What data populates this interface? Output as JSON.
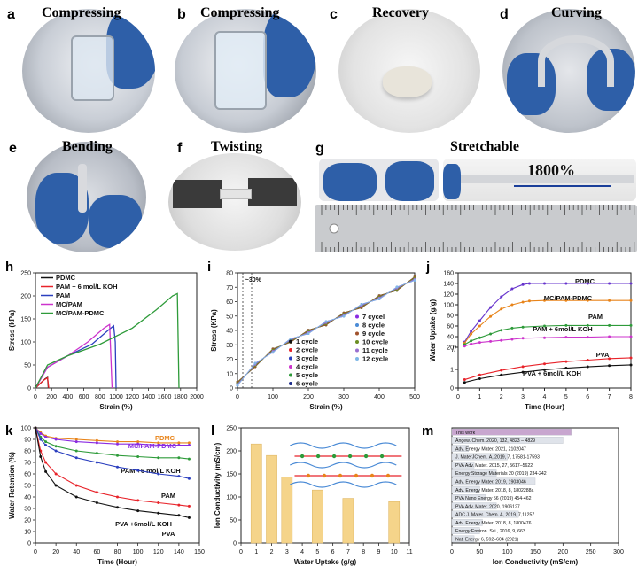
{
  "photos": [
    {
      "id": "a",
      "letter": "a",
      "title": "Compressing"
    },
    {
      "id": "b",
      "letter": "b",
      "title": "Compressing"
    },
    {
      "id": "c",
      "letter": "c",
      "title": "Recovery"
    },
    {
      "id": "d",
      "letter": "d",
      "title": "Curving"
    },
    {
      "id": "e",
      "letter": "e",
      "title": "Bending"
    },
    {
      "id": "f",
      "letter": "f",
      "title": "Twisting"
    },
    {
      "id": "g",
      "letter": "g",
      "title": "Stretchable",
      "annotation": "1800%"
    }
  ],
  "chart_data": [
    {
      "id": "h",
      "letter": "h",
      "type": "line",
      "xlabel": "Strain (%)",
      "ylabel": "Stress (kPa)",
      "xlim": [
        0,
        2000
      ],
      "ylim": [
        0,
        250
      ],
      "xticks": [
        0,
        200,
        400,
        600,
        800,
        1000,
        1200,
        1400,
        1600,
        1800,
        2000
      ],
      "yticks": [
        0,
        50,
        100,
        150,
        200,
        250
      ],
      "series": [
        {
          "name": "PDMC",
          "color": "#111111",
          "x": [
            0,
            60,
            120,
            150,
            160
          ],
          "y": [
            0,
            10,
            20,
            23,
            0
          ]
        },
        {
          "name": "PAM + 6 mol/L KOH",
          "color": "#e8232a",
          "x": [
            0,
            60,
            110,
            150,
            165
          ],
          "y": [
            0,
            10,
            18,
            22,
            0
          ]
        },
        {
          "name": "PAM",
          "color": "#2b3fbf",
          "x": [
            0,
            150,
            400,
            700,
            900,
            970,
            990,
            1000
          ],
          "y": [
            0,
            45,
            70,
            95,
            125,
            135,
            100,
            0
          ]
        },
        {
          "name": "MC/PAM",
          "color": "#cc33cc",
          "x": [
            0,
            150,
            400,
            650,
            850,
            920,
            950
          ],
          "y": [
            0,
            45,
            70,
            100,
            130,
            138,
            0
          ]
        },
        {
          "name": "MC/PAM-PDMC",
          "color": "#2e9b3a",
          "x": [
            0,
            150,
            400,
            800,
            1200,
            1500,
            1700,
            1760,
            1780
          ],
          "y": [
            0,
            50,
            70,
            95,
            130,
            170,
            200,
            205,
            0
          ]
        }
      ]
    },
    {
      "id": "i",
      "letter": "i",
      "type": "scatter",
      "xlabel": "Strain (%)",
      "ylabel": "Stress (KPa)",
      "xlim": [
        0,
        500
      ],
      "ylim": [
        0,
        80
      ],
      "xticks": [
        0,
        100,
        200,
        300,
        400,
        500
      ],
      "yticks": [
        0,
        10,
        20,
        30,
        40,
        50,
        60,
        70,
        80
      ],
      "annotation": "~30%",
      "series": [
        {
          "name": "1 cycle",
          "color": "#111111"
        },
        {
          "name": "2 cycle",
          "color": "#e8232a"
        },
        {
          "name": "3 cycle",
          "color": "#2b3fbf"
        },
        {
          "name": "4 cycle",
          "color": "#cc33cc"
        },
        {
          "name": "5 cycle",
          "color": "#2e9b3a"
        },
        {
          "name": "6 cycle",
          "color": "#1b2a8a"
        },
        {
          "name": "7 cycel",
          "color": "#8a2be2"
        },
        {
          "name": "8 cycle",
          "color": "#4b8bd6"
        },
        {
          "name": "9 cycle",
          "color": "#a0522d"
        },
        {
          "name": "10 cycle",
          "color": "#6b8e23"
        },
        {
          "name": "11 cycle",
          "color": "#9a6fd0"
        },
        {
          "name": "12 cycle",
          "color": "#7fb8e6"
        }
      ],
      "x": [
        0,
        50,
        100,
        150,
        200,
        250,
        300,
        350,
        400,
        450,
        500
      ],
      "y": [
        3,
        16,
        26,
        33,
        39,
        45,
        51,
        57,
        63,
        69,
        76
      ]
    },
    {
      "id": "j",
      "letter": "j",
      "type": "line",
      "xlabel": "Time (Hour)",
      "ylabel": "Water Uptake (g/g)",
      "xlim": [
        0,
        8
      ],
      "xticks": [
        0,
        1,
        2,
        3,
        4,
        5,
        6,
        7,
        8
      ],
      "upper_yticks": [
        20,
        40,
        60,
        80,
        100,
        120,
        140,
        160
      ],
      "lower_yticks": [
        0,
        1
      ],
      "series": [
        {
          "name": "PDMC",
          "color": "#6633cc",
          "x": [
            0.3,
            0.6,
            1,
            1.5,
            2,
            2.5,
            3,
            3.3,
            4,
            5,
            6,
            7,
            8
          ],
          "y": [
            30,
            50,
            70,
            95,
            115,
            130,
            138,
            140,
            140,
            140,
            140,
            140,
            140
          ]
        },
        {
          "name": "MC/PAM-PDMC",
          "color": "#e8841a",
          "x": [
            0.3,
            0.6,
            1,
            1.5,
            2,
            2.5,
            3,
            3.3,
            4,
            5,
            6,
            7,
            8
          ],
          "y": [
            28,
            45,
            60,
            78,
            92,
            100,
            105,
            107,
            108,
            108,
            108,
            108,
            108
          ]
        },
        {
          "name": "PAM",
          "color": "#2e9b3a",
          "x": [
            0.3,
            0.6,
            1,
            1.5,
            2,
            2.5,
            3,
            4,
            5,
            6,
            7,
            8
          ],
          "y": [
            25,
            32,
            38,
            45,
            52,
            56,
            58,
            60,
            61,
            61,
            61,
            61
          ]
        },
        {
          "name": "PAM + 6mol/L KOH",
          "color": "#cc33cc",
          "x": [
            0.3,
            0.6,
            1,
            1.5,
            2,
            2.5,
            3,
            4,
            5,
            6,
            7,
            8
          ],
          "y": [
            22,
            26,
            29,
            31,
            33,
            35,
            37,
            38,
            39,
            39,
            40,
            40
          ]
        },
        {
          "name": "PVA",
          "color": "#e8232a",
          "x": [
            0.3,
            1,
            2,
            3,
            4,
            5,
            6,
            7,
            8
          ],
          "y": [
            0.45,
            0.7,
            0.95,
            1.15,
            1.3,
            1.42,
            1.5,
            1.58,
            1.62
          ]
        },
        {
          "name": "PVA + 6mol/L KOH",
          "color": "#111111",
          "x": [
            0.3,
            1,
            2,
            3,
            4,
            5,
            6,
            7,
            8
          ],
          "y": [
            0.3,
            0.5,
            0.7,
            0.85,
            0.98,
            1.07,
            1.14,
            1.2,
            1.24
          ]
        }
      ]
    },
    {
      "id": "k",
      "letter": "k",
      "type": "line",
      "xlabel": "Time (Hour)",
      "ylabel": "Water Retention (%)",
      "xlim": [
        0,
        160
      ],
      "ylim": [
        0,
        100
      ],
      "xticks": [
        0,
        20,
        40,
        60,
        80,
        100,
        120,
        140,
        160
      ],
      "yticks": [
        0,
        10,
        20,
        30,
        40,
        50,
        60,
        70,
        80,
        90,
        100
      ],
      "series": [
        {
          "name": "PDMC",
          "color": "#e8841a",
          "x": [
            0,
            5,
            10,
            20,
            40,
            60,
            80,
            100,
            120,
            140,
            150
          ],
          "y": [
            100,
            96,
            93,
            91,
            90,
            89,
            88,
            88,
            87,
            87,
            87
          ]
        },
        {
          "name": "MC/PAM-PDMC",
          "color": "#8a2be2",
          "x": [
            0,
            5,
            10,
            20,
            40,
            60,
            80,
            100,
            120,
            140,
            150
          ],
          "y": [
            100,
            95,
            92,
            90,
            88,
            87,
            86,
            86,
            85,
            85,
            85
          ]
        },
        {
          "name": "PAM +6 mol/L KOH",
          "color": "#2e9b3a",
          "x": [
            0,
            5,
            10,
            20,
            40,
            60,
            80,
            100,
            120,
            140,
            150
          ],
          "y": [
            100,
            92,
            88,
            84,
            80,
            78,
            76,
            75,
            74,
            74,
            73
          ]
        },
        {
          "name": "PAM",
          "color": "#2b3fbf",
          "x": [
            0,
            5,
            10,
            20,
            40,
            60,
            80,
            100,
            120,
            140,
            150
          ],
          "y": [
            100,
            90,
            85,
            80,
            74,
            70,
            66,
            63,
            60,
            58,
            56
          ]
        },
        {
          "name": "PVA +6mol/L KOH",
          "color": "#e8232a",
          "x": [
            0,
            5,
            10,
            20,
            40,
            60,
            80,
            100,
            120,
            140,
            150
          ],
          "y": [
            100,
            80,
            70,
            60,
            50,
            44,
            40,
            37,
            35,
            33,
            32
          ]
        },
        {
          "name": "PVA",
          "color": "#111111",
          "x": [
            0,
            5,
            10,
            20,
            40,
            60,
            80,
            100,
            120,
            140,
            150
          ],
          "y": [
            100,
            75,
            62,
            50,
            40,
            35,
            31,
            28,
            26,
            24,
            22
          ]
        }
      ]
    },
    {
      "id": "l",
      "letter": "l",
      "type": "bar",
      "xlabel": "Water Uptake (g/g)",
      "ylabel": "Ion Conductivity (mS/cm)",
      "xlim": [
        0,
        11
      ],
      "ylim": [
        0,
        250
      ],
      "xticks": [
        0,
        1,
        2,
        3,
        4,
        5,
        6,
        7,
        8,
        9,
        10,
        11
      ],
      "yticks": [
        0,
        50,
        100,
        150,
        200,
        250
      ],
      "x": [
        1,
        2,
        3,
        5,
        7,
        10
      ],
      "values": [
        215,
        190,
        143,
        115,
        97,
        90
      ],
      "color": "#f5d48a"
    },
    {
      "id": "m",
      "letter": "m",
      "type": "bar",
      "xlabel": "Ion Conductivity (mS/cm)",
      "xlim": [
        0,
        300
      ],
      "xticks": [
        0,
        50,
        100,
        150,
        200,
        250,
        300
      ],
      "bars": [
        {
          "label": "This work",
          "value": 215,
          "color": "#c8a6cf"
        },
        {
          "label": "Angew. Chem. 2020, 132, 4823 – 4829",
          "value": 200,
          "color": "#dfe3ea"
        },
        {
          "label": "Adv. Energy Mater. 2021, 2102047",
          "value": 30,
          "color": "#dfe3ea"
        },
        {
          "label": "J. MaterJChem. A, 2019, 7, 17581-17593",
          "value": 100,
          "color": "#dfe3ea"
        },
        {
          "label": "PVA Adv. Mater. 2015, 27, 5617–5622",
          "value": 40,
          "color": "#dfe3ea"
        },
        {
          "label": "Energy Storage Materials 20 (2019) 234-242",
          "value": 80,
          "color": "#dfe3ea"
        },
        {
          "label": "Adv. Energy Mater. 2019, 1903046",
          "value": 150,
          "color": "#dfe3ea"
        },
        {
          "label": "Adv. Energy Mater. 2018, 8, 1802288a",
          "value": 50,
          "color": "#dfe3ea"
        },
        {
          "label": "PVA Nano Energy 56 (2019) 454-462",
          "value": 60,
          "color": "#dfe3ea"
        },
        {
          "label": "PVA Adv. Mater. 2020, 1906127",
          "value": 80,
          "color": "#dfe3ea"
        },
        {
          "label": "ADC J. Mater. Chem. A, 2019, 7,11257",
          "value": 120,
          "color": "#dfe3ea"
        },
        {
          "label": "Adv. Energy Mater. 2018, 8, 1800476",
          "value": 55,
          "color": "#dfe3ea"
        },
        {
          "label": "Energy Environ. Sci., 2016, 9, 663",
          "value": 50,
          "color": "#dfe3ea"
        },
        {
          "label": "Nat. Energy 6, 592–604 (2021)",
          "value": 40,
          "color": "#dfe3ea"
        }
      ]
    }
  ]
}
